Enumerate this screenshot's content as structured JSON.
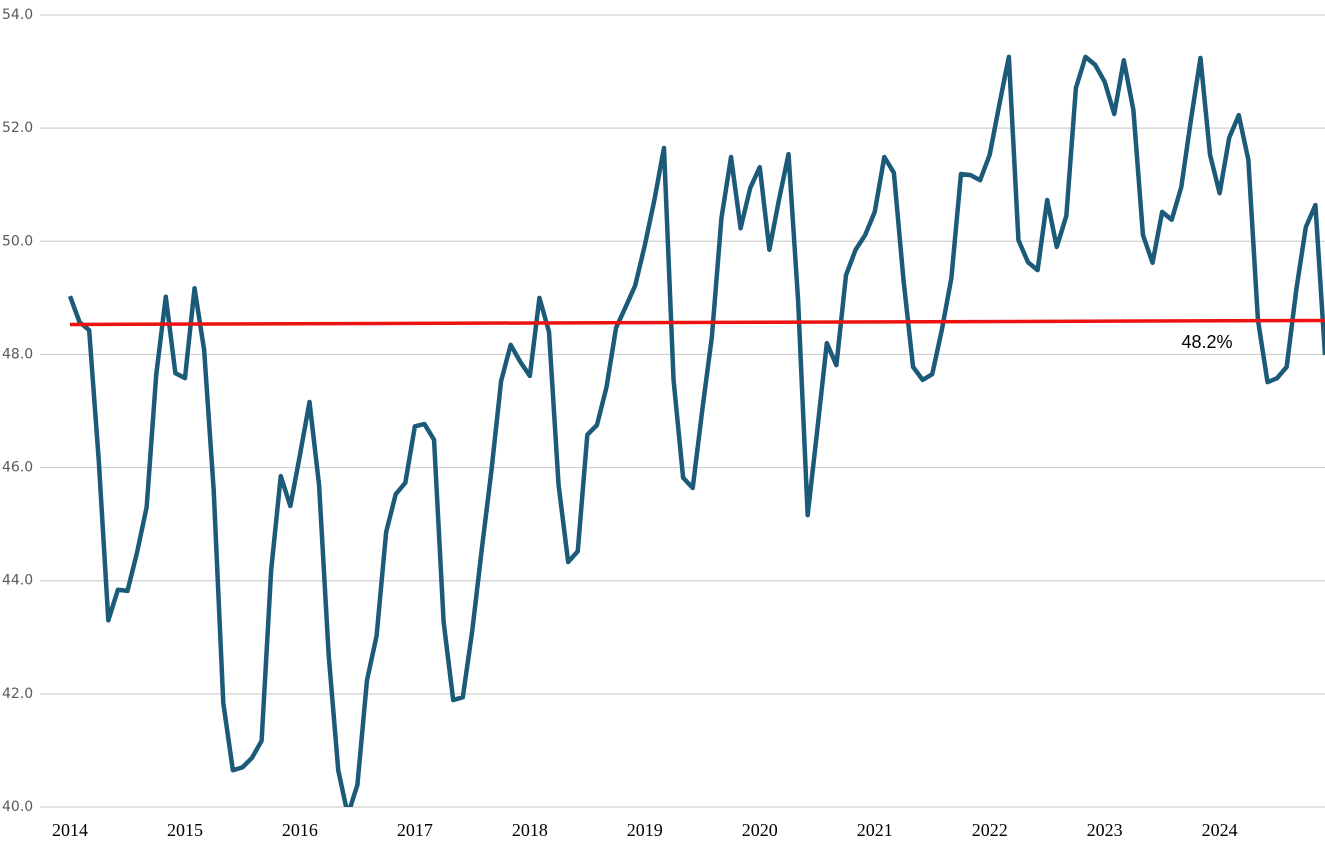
{
  "chart_data": {
    "type": "line",
    "categories": [
      "2014",
      null,
      null,
      null,
      null,
      null,
      null,
      null,
      null,
      null,
      null,
      null,
      "2015",
      null,
      null,
      null,
      null,
      null,
      null,
      null,
      null,
      null,
      null,
      null,
      "2016",
      null,
      null,
      null,
      null,
      null,
      null,
      null,
      null,
      null,
      null,
      null,
      "2017",
      null,
      null,
      null,
      null,
      null,
      null,
      null,
      null,
      null,
      null,
      null,
      "2018",
      null,
      null,
      null,
      null,
      null,
      null,
      null,
      null,
      null,
      null,
      null,
      "2019",
      null,
      null,
      null,
      null,
      null,
      null,
      null,
      null,
      null,
      null,
      null,
      "2020",
      null,
      null,
      null,
      null,
      null,
      null,
      null,
      null,
      null,
      null,
      null,
      "2021",
      null,
      null,
      null,
      null,
      null,
      null,
      null,
      null,
      null,
      null,
      null,
      "2022",
      null,
      null,
      null,
      null,
      null,
      null,
      null,
      null,
      null,
      null,
      null,
      "2023",
      null,
      null,
      null,
      null,
      null,
      null,
      null,
      null,
      null,
      null,
      null,
      "2024",
      null,
      null,
      null,
      null,
      null,
      null,
      null,
      null,
      null,
      null,
      null
    ],
    "series": [
      {
        "color": "#1b5a78",
        "values": [
          49.03,
          48.57,
          48.43,
          46.13,
          43.3,
          43.84,
          43.82,
          44.5,
          45.3,
          47.64,
          49.02,
          47.67,
          47.58,
          49.17,
          48.08,
          45.6,
          41.84,
          40.65,
          40.7,
          40.87,
          41.17,
          44.19,
          45.85,
          45.32,
          46.22,
          47.16,
          45.69,
          42.69,
          40.65,
          39.86,
          40.39,
          42.24,
          43.02,
          44.86,
          45.53,
          45.73,
          46.73,
          46.77,
          46.49,
          43.27,
          41.89,
          41.94,
          43.13,
          44.58,
          45.96,
          47.53,
          48.17,
          47.87,
          47.62,
          49.0,
          48.4,
          45.69,
          44.33,
          44.52,
          46.58,
          46.75,
          47.42,
          48.47,
          48.84,
          49.22,
          49.93,
          50.73,
          51.65,
          47.55,
          45.82,
          45.64,
          47.02,
          48.31,
          50.41,
          51.49,
          50.23,
          50.94,
          51.31,
          49.85,
          50.73,
          51.54,
          48.96,
          45.16,
          46.66,
          48.2,
          47.81,
          49.4,
          49.85,
          50.11,
          50.52,
          51.49,
          51.21,
          49.32,
          47.78,
          47.55,
          47.65,
          48.43,
          49.35,
          51.19,
          51.17,
          51.08,
          51.53,
          52.41,
          53.26,
          50.02,
          49.63,
          49.49,
          50.73,
          49.9,
          50.45,
          52.71,
          53.26,
          53.12,
          52.82,
          52.25,
          53.2,
          52.32,
          50.11,
          49.62,
          50.52,
          50.38,
          50.96,
          52.14,
          53.24,
          51.53,
          50.85,
          51.83,
          52.23,
          51.44,
          48.61,
          47.51,
          47.58,
          47.78,
          49.14,
          50.25,
          50.64,
          47.99
        ]
      }
    ],
    "trend_line": {
      "color": "#ee1111",
      "values": [
        48.53,
        48.6
      ]
    },
    "annotation": "48.2%",
    "ylim": [
      40,
      54
    ],
    "yticks": [
      {
        "value": 40,
        "label": "40.0"
      },
      {
        "value": 42,
        "label": "42.0"
      },
      {
        "value": 44,
        "label": "44.0"
      },
      {
        "value": 46,
        "label": "46.0"
      },
      {
        "value": 48,
        "label": "48.0"
      },
      {
        "value": 50,
        "label": "50.0"
      },
      {
        "value": 52,
        "label": "52.0"
      },
      {
        "value": 54,
        "label": "54.0"
      }
    ],
    "grid": true
  }
}
